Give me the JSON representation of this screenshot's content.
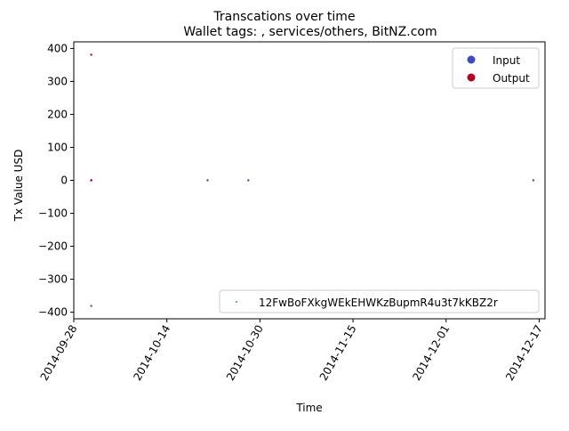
{
  "chart_data": {
    "type": "scatter",
    "suptitle": "Transcations over time",
    "title": "Wallet tags: , services/others, BitNZ.com",
    "xlabel": "Time",
    "ylabel": "Tx Value USD",
    "xlim": [
      "2014-09-28",
      "2014-12-18"
    ],
    "ylim": [
      -420,
      420
    ],
    "xticks": [
      "2014-09-28",
      "2014-10-14",
      "2014-10-30",
      "2014-11-15",
      "2014-12-01",
      "2014-12-17"
    ],
    "yticks": [
      400,
      300,
      200,
      100,
      0,
      -100,
      -200,
      -300,
      -400
    ],
    "grid": false,
    "colors": {
      "input": "#3b4cc0",
      "output": "#b40426",
      "address": "#1f9e89"
    },
    "series": [
      {
        "name": "Input",
        "color": "#3b4cc0",
        "points": [
          {
            "x": "2014-10-01",
            "y": 0
          },
          {
            "x": "2014-10-01",
            "y": -381
          },
          {
            "x": "2014-10-21",
            "y": 0
          },
          {
            "x": "2014-10-28",
            "y": 0
          },
          {
            "x": "2014-12-16",
            "y": 0
          }
        ]
      },
      {
        "name": "Output",
        "color": "#b40426",
        "points": [
          {
            "x": "2014-10-01",
            "y": 381
          },
          {
            "x": "2014-10-01",
            "y": 0
          },
          {
            "x": "2014-10-01",
            "y": 0
          }
        ]
      }
    ],
    "legend": {
      "position": "top-right",
      "entries": [
        {
          "label": "Input",
          "color": "#3b4cc0"
        },
        {
          "label": "Output",
          "color": "#b40426"
        }
      ]
    },
    "legend2": {
      "position": "bottom-right",
      "label": "12FwBoFXkgWEkEHWKzBupmR4u3t7kKBZ2r",
      "color": "#1f9e89"
    }
  }
}
